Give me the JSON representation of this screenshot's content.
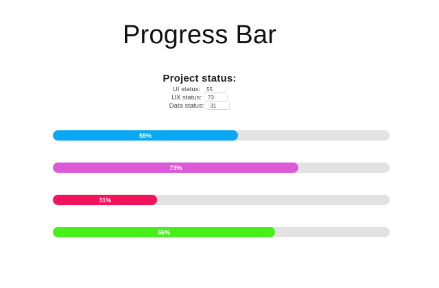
{
  "page": {
    "title": "Progress Bar"
  },
  "status": {
    "heading": "Project status:",
    "fields": [
      {
        "label": "UI status:",
        "value": "55"
      },
      {
        "label": "UX status:",
        "value": "73"
      },
      {
        "label": "Data status:",
        "value": "31"
      }
    ]
  },
  "bars": [
    {
      "label": "55%",
      "percent": 55,
      "color": "#0aa8f2"
    },
    {
      "label": "73%",
      "percent": 73,
      "color": "#dc5ad8"
    },
    {
      "label": "31%",
      "percent": 31,
      "color": "#f2135c"
    },
    {
      "label": "66%",
      "percent": 66,
      "color": "#47ef18"
    }
  ],
  "colors": {
    "track": "#e2e2e2",
    "bar_text": "#ffffff"
  }
}
